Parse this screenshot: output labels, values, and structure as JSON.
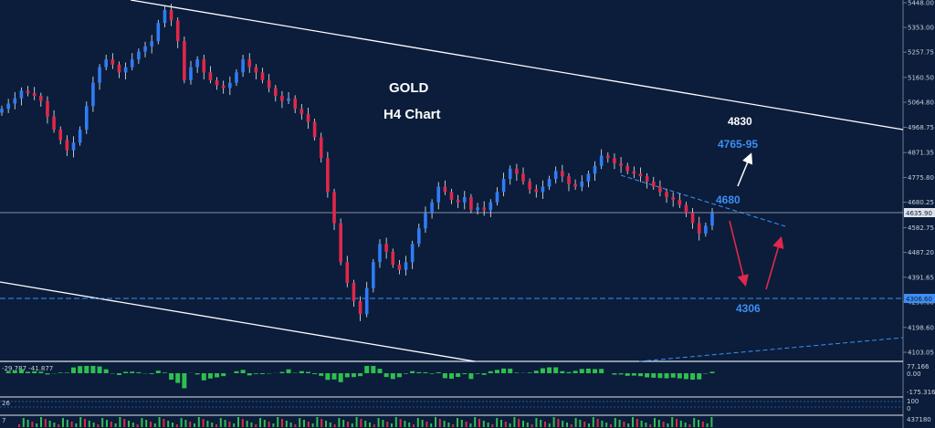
{
  "chart_data": {
    "type": "candlestick",
    "title": "GOLD",
    "subtitle": "H4 Chart",
    "y_ticks": [
      "5448.00",
      "5353.00",
      "5257.75",
      "5160.50",
      "5064.80",
      "4968.75",
      "4871.35",
      "4775.80",
      "4680.25",
      "4582.75",
      "4487.20",
      "4391.65",
      "4296.60",
      "4198.60",
      "4103.05"
    ],
    "ylim": [
      4103.05,
      5448.0
    ],
    "current_price_label": "4635.90",
    "support_price_label": "4306.60",
    "current_price": 4635.9,
    "support_price": 4306.6,
    "annotations": [
      "4830",
      "4765-95",
      "4680",
      "4306"
    ],
    "approx_closes": [
      5040,
      5060,
      5080,
      5110,
      5100,
      5090,
      5070,
      5010,
      4960,
      4920,
      4880,
      4910,
      4960,
      5050,
      5140,
      5200,
      5230,
      5210,
      5180,
      5200,
      5230,
      5260,
      5280,
      5300,
      5370,
      5420,
      5380,
      5300,
      5150,
      5200,
      5230,
      5180,
      5150,
      5130,
      5120,
      5140,
      5180,
      5230,
      5200,
      5180,
      5150,
      5120,
      5090,
      5070,
      5080,
      5040,
      5020,
      4990,
      4930,
      4850,
      4720,
      4600,
      4450,
      4370,
      4300,
      4250,
      4350,
      4450,
      4520,
      4490,
      4440,
      4420,
      4450,
      4520,
      4580,
      4640,
      4680,
      4740,
      4720,
      4690,
      4680,
      4700,
      4650,
      4660,
      4650,
      4680,
      4720,
      4770,
      4810,
      4790,
      4760,
      4730,
      4720,
      4740,
      4770,
      4800,
      4780,
      4750,
      4740,
      4760,
      4790,
      4820,
      4860,
      4850,
      4830,
      4820,
      4800,
      4790,
      4780,
      4760,
      4740,
      4720,
      4700,
      4690,
      4670,
      4640,
      4600,
      4560,
      4590,
      4640
    ],
    "indicators": [
      {
        "label": "-29.787 -41.877",
        "ticks": [
          "77.166",
          "0.00",
          "-175.316"
        ]
      },
      {
        "label": "26",
        "ticks": [
          "100",
          "0"
        ]
      },
      {
        "label": "7",
        "ticks": [
          "437180"
        ]
      }
    ]
  },
  "colors": {
    "background": "#0b1d3a",
    "bull": "#2f7cf6",
    "bear": "#e0284a",
    "wick": "#e8ecf2",
    "trendline": "#ffffff",
    "level_blue": "#3d8ef5",
    "arrow_red": "#e0284a",
    "histogram": "#2fbf4f"
  }
}
